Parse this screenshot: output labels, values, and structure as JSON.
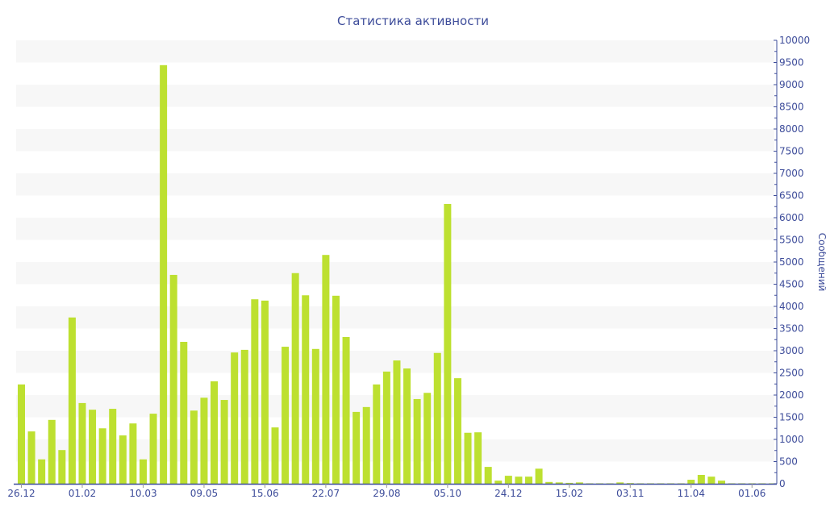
{
  "chart_data": {
    "type": "bar",
    "title": "Статистика активности",
    "ylabel": "Сообщений",
    "xlabel": "",
    "ylim": [
      0,
      10000
    ],
    "y_ticks": [
      0,
      500,
      1000,
      1500,
      2000,
      2500,
      3000,
      3500,
      4000,
      4500,
      5000,
      5500,
      6000,
      6500,
      7000,
      7500,
      8000,
      8500,
      9000,
      9500,
      10000
    ],
    "y_axis_position": "right",
    "grid": "alternating horizontal bands",
    "x_tick_labels": [
      {
        "index": 0,
        "label": "26.12"
      },
      {
        "index": 6,
        "label": "01.02"
      },
      {
        "index": 12,
        "label": "10.03"
      },
      {
        "index": 18,
        "label": "09.05"
      },
      {
        "index": 24,
        "label": "15.06"
      },
      {
        "index": 30,
        "label": "22.07"
      },
      {
        "index": 36,
        "label": "29.08"
      },
      {
        "index": 42,
        "label": "05.10"
      },
      {
        "index": 48,
        "label": "24.12"
      },
      {
        "index": 54,
        "label": "15.02"
      },
      {
        "index": 60,
        "label": "03.11"
      },
      {
        "index": 66,
        "label": "11.04"
      },
      {
        "index": 72,
        "label": "01.06"
      }
    ],
    "values": [
      2240,
      1180,
      550,
      1440,
      760,
      3750,
      1820,
      1670,
      1250,
      1690,
      1090,
      1360,
      550,
      1580,
      9440,
      4710,
      3200,
      1650,
      1940,
      2310,
      1890,
      2960,
      3020,
      4160,
      4130,
      1270,
      3090,
      4750,
      4250,
      3040,
      5160,
      4240,
      3310,
      1620,
      1730,
      2240,
      2530,
      2780,
      2600,
      1910,
      2050,
      2950,
      6310,
      2380,
      1150,
      1160,
      380,
      70,
      180,
      160,
      160,
      340,
      40,
      30,
      20,
      30,
      10,
      10,
      10,
      30,
      15,
      10,
      10,
      10,
      10,
      10,
      90,
      200,
      160,
      70,
      10,
      10,
      10,
      10,
      10
    ],
    "colors": {
      "bar": "#bde030",
      "axis": "#3d4c9a",
      "band": "#f7f7f7"
    }
  }
}
